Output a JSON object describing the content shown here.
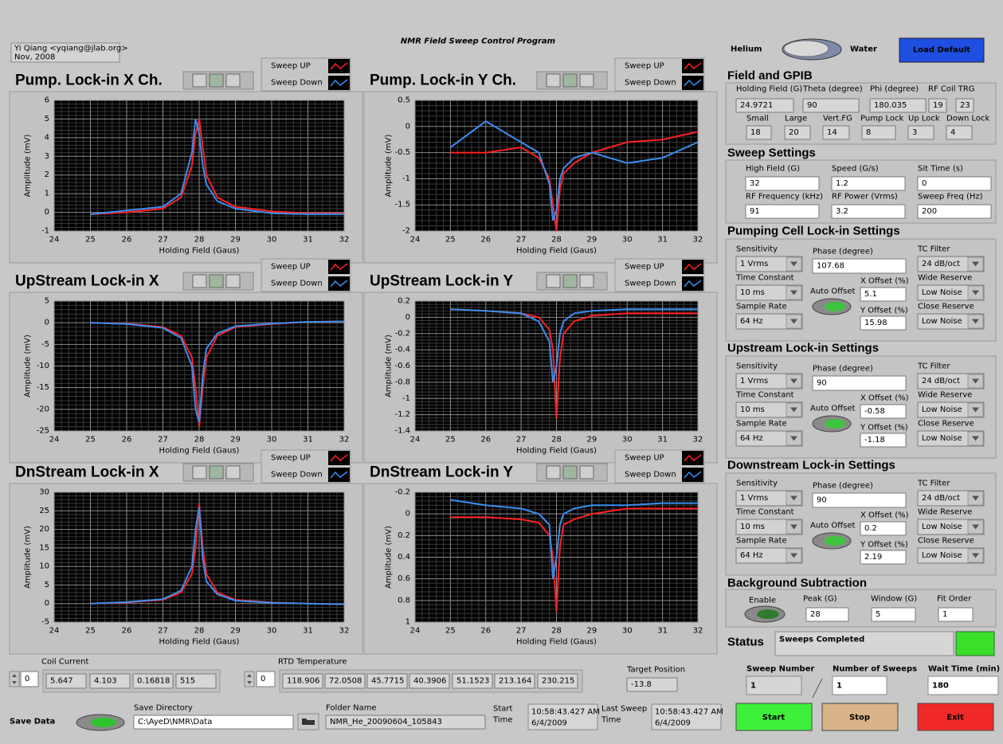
{
  "header": {
    "author": "Yi Qiang <yqiang@jlab.org>",
    "date": "Nov, 2008",
    "title": "NMR Field Sweep Control Program",
    "helium": "Helium",
    "water": "Water",
    "load_default": "Load Default"
  },
  "plots": [
    {
      "title": "Pump. Lock-in X Ch.",
      "xlabel": "Holding Field (Gaus)",
      "ylabel": "Amplitude (mV)",
      "xlim": [
        24,
        32
      ],
      "xticks": [
        24,
        25,
        26,
        27,
        28,
        29,
        30,
        31,
        32
      ],
      "ylim": [
        -1,
        6
      ],
      "yticks": [
        -1,
        0,
        1,
        2,
        3,
        4,
        5,
        6
      ],
      "x": [
        25,
        26,
        27,
        27.5,
        27.8,
        27.9,
        28,
        28.1,
        28.2,
        28.5,
        29,
        30,
        31,
        32
      ],
      "series": [
        {
          "name": "Sweep UP",
          "color": "#ff2020",
          "values": [
            -0.1,
            0,
            0.2,
            0.8,
            2.5,
            4.2,
            5.0,
            3.5,
            2,
            0.8,
            0.3,
            0.05,
            -0.05,
            -0.05
          ]
        },
        {
          "name": "Sweep Down",
          "color": "#3a8ef0",
          "values": [
            -0.1,
            0.1,
            0.3,
            1.0,
            3.2,
            5.0,
            4.2,
            2.5,
            1.5,
            0.6,
            0.2,
            -0.05,
            -0.1,
            -0.1
          ]
        }
      ]
    },
    {
      "title": "Pump. Lock-in Y Ch.",
      "xlabel": "Holding Field (Gaus)",
      "ylabel": "Amplitude (mV)",
      "xlim": [
        24,
        32
      ],
      "xticks": [
        24,
        25,
        26,
        27,
        28,
        29,
        30,
        31,
        32
      ],
      "ylim": [
        -2,
        0.5
      ],
      "yticks": [
        -2,
        -1.5,
        -1,
        -0.5,
        0,
        0.5
      ],
      "x": [
        25,
        26,
        27,
        27.5,
        27.8,
        27.9,
        28,
        28.1,
        28.2,
        28.5,
        29,
        30,
        31,
        32
      ],
      "series": [
        {
          "name": "Sweep UP",
          "color": "#ff2020",
          "values": [
            -0.5,
            -0.5,
            -0.4,
            -0.6,
            -1.0,
            -1.5,
            -2.0,
            -1.2,
            -0.9,
            -0.7,
            -0.5,
            -0.3,
            -0.25,
            -0.1
          ]
        },
        {
          "name": "Sweep Down",
          "color": "#3a8ef0",
          "values": [
            -0.4,
            0.1,
            -0.3,
            -0.5,
            -1.1,
            -1.8,
            -1.6,
            -1.0,
            -0.8,
            -0.6,
            -0.5,
            -0.7,
            -0.6,
            -0.3
          ]
        }
      ]
    },
    {
      "title": "UpStream Lock-in X",
      "xlabel": "Holding Field (Gaus)",
      "ylabel": "Amplitude (mV)",
      "xlim": [
        24,
        32
      ],
      "xticks": [
        24,
        25,
        26,
        27,
        28,
        29,
        30,
        31,
        32
      ],
      "ylim": [
        -25,
        5
      ],
      "yticks": [
        -25,
        -20,
        -15,
        -10,
        -5,
        0,
        5
      ],
      "x": [
        25,
        26,
        27,
        27.5,
        27.8,
        27.9,
        28,
        28.1,
        28.2,
        28.5,
        29,
        30,
        31,
        32
      ],
      "series": [
        {
          "name": "Sweep UP",
          "color": "#ff2020",
          "values": [
            0,
            -0.2,
            -1,
            -3,
            -8,
            -15,
            -24,
            -15,
            -8,
            -3,
            -1,
            -0.3,
            0.2,
            0.3
          ]
        },
        {
          "name": "Sweep Down",
          "color": "#3a8ef0",
          "values": [
            0,
            -0.3,
            -1.2,
            -3.5,
            -10,
            -20,
            -23,
            -12,
            -6,
            -2.5,
            -0.8,
            -0.2,
            0.2,
            0.3
          ]
        }
      ]
    },
    {
      "title": "UpStream Lock-in Y",
      "xlabel": "Holding Field (Gaus)",
      "ylabel": "Amplitude (mV)",
      "xlim": [
        24,
        32
      ],
      "xticks": [
        24,
        25,
        26,
        27,
        28,
        29,
        30,
        31,
        32
      ],
      "ylim": [
        -1.4,
        0.2
      ],
      "yticks": [
        -1.4,
        -1.2,
        -1,
        -0.8,
        -0.6,
        -0.4,
        -0.2,
        0,
        0.2
      ],
      "x": [
        25,
        26,
        27,
        27.5,
        27.8,
        27.9,
        28,
        28.1,
        28.2,
        28.5,
        29,
        30,
        31,
        32
      ],
      "series": [
        {
          "name": "Sweep UP",
          "color": "#ff2020",
          "values": [
            0.1,
            0.08,
            0.05,
            0,
            -0.15,
            -0.4,
            -1.25,
            -0.5,
            -0.2,
            -0.05,
            0.02,
            0.05,
            0.05,
            0.05
          ]
        },
        {
          "name": "Sweep Down",
          "color": "#3a8ef0",
          "values": [
            0.1,
            0.08,
            0.05,
            -0.05,
            -0.3,
            -0.8,
            -0.6,
            -0.2,
            -0.05,
            0.05,
            0.08,
            0.1,
            0.1,
            0.1
          ]
        }
      ]
    },
    {
      "title": "DnStream Lock-in X",
      "xlabel": "Holding Field (Gaus)",
      "ylabel": "Amplitude (mV)",
      "xlim": [
        24,
        32
      ],
      "xticks": [
        24,
        25,
        26,
        27,
        28,
        29,
        30,
        31,
        32
      ],
      "ylim": [
        -5,
        30
      ],
      "yticks": [
        -5,
        0,
        5,
        10,
        15,
        20,
        25,
        30
      ],
      "x": [
        25,
        26,
        27,
        27.5,
        27.8,
        27.9,
        28,
        28.1,
        28.2,
        28.5,
        29,
        30,
        31,
        32
      ],
      "series": [
        {
          "name": "Sweep UP",
          "color": "#ff2020",
          "values": [
            0,
            0.3,
            1,
            3,
            8,
            15,
            27,
            15,
            8,
            3,
            1,
            0.3,
            0,
            -0.2
          ]
        },
        {
          "name": "Sweep Down",
          "color": "#3a8ef0",
          "values": [
            0,
            0.4,
            1.2,
            3.5,
            10,
            20,
            26,
            12,
            6,
            2.5,
            0.8,
            0.2,
            0,
            -0.2
          ]
        }
      ]
    },
    {
      "title": "DnStream Lock-in Y",
      "xlabel": "Holding Field (Gaus)",
      "ylabel": "Amplitude (mV)",
      "xlim": [
        24,
        32
      ],
      "xticks": [
        24,
        25,
        26,
        27,
        28,
        29,
        30,
        31,
        32
      ],
      "ylim": [
        1,
        -0.2
      ],
      "yticks": [
        -0.2,
        0,
        0.2,
        0.4,
        0.6,
        0.8,
        1
      ],
      "x": [
        25,
        26,
        27,
        27.5,
        27.8,
        27.9,
        28,
        28.1,
        28.2,
        28.5,
        29,
        30,
        31,
        32
      ],
      "series": [
        {
          "name": "Sweep UP",
          "color": "#ff2020",
          "values": [
            0.03,
            0.03,
            0.05,
            0.08,
            0.2,
            0.4,
            0.9,
            0.3,
            0.1,
            0.05,
            0,
            -0.05,
            -0.05,
            -0.05
          ]
        },
        {
          "name": "Sweep Down",
          "color": "#3a8ef0",
          "values": [
            -0.13,
            -0.08,
            -0.05,
            0,
            0.1,
            0.6,
            0.4,
            0.1,
            0,
            -0.05,
            -0.08,
            -0.08,
            -0.1,
            -0.1
          ]
        }
      ]
    }
  ],
  "field_gpib": {
    "title": "Field and GPIB",
    "fields": [
      {
        "label": "Holding Field (G)",
        "value": "24.9721"
      },
      {
        "label": "Theta (degree)",
        "value": "90"
      },
      {
        "label": "Phi (degree)",
        "value": "180.035"
      },
      {
        "label": "RF Coil TRG",
        "values": [
          "19",
          "23"
        ]
      },
      {
        "label": "Small",
        "value": "18"
      },
      {
        "label": "Large",
        "value": "20"
      },
      {
        "label": "Vert.FG",
        "value": "14"
      },
      {
        "label": "Pump Lock",
        "value": "8"
      },
      {
        "label": "Up Lock",
        "value": "3"
      },
      {
        "label": "Down Lock",
        "value": "4"
      }
    ]
  },
  "sweep_settings": {
    "title": "Sweep Settings",
    "fields": [
      {
        "label": "High Field (G)",
        "value": "32"
      },
      {
        "label": "Speed (G/s)",
        "value": "1.2"
      },
      {
        "label": "Sit Time (s)",
        "value": "0"
      },
      {
        "label": "RF Frequency (kHz)",
        "value": "91"
      },
      {
        "label": "RF Power (Vrms)",
        "value": "3.2"
      },
      {
        "label": "Sweep Freq (Hz)",
        "value": "200"
      }
    ]
  },
  "lockins": [
    {
      "title": "Pumping Cell Lock-in Settings",
      "sensitivity": {
        "label": "Sensitivity",
        "value": "1 Vrms"
      },
      "phase": {
        "label": "Phase (degree)",
        "value": "107.68"
      },
      "tc_filter": {
        "label": "TC Filter",
        "value": "24 dB/oct"
      },
      "time_constant": {
        "label": "Time Constant",
        "value": "10 ms"
      },
      "auto_offset": {
        "label": "Auto Offset"
      },
      "x_offset": {
        "label": "X Offset (%)",
        "value": "5.1"
      },
      "wide_reserve": {
        "label": "Wide Reserve",
        "value": "Low Noise"
      },
      "sample_rate": {
        "label": "Sample Rate",
        "value": "64 Hz"
      },
      "y_offset": {
        "label": "Y Offset (%)",
        "value": "15.98"
      },
      "close_reserve": {
        "label": "Close Reserve",
        "value": "Low Noise"
      }
    },
    {
      "title": "Upstream Lock-in Settings",
      "sensitivity": {
        "label": "Sensitivity",
        "value": "1 Vrms"
      },
      "phase": {
        "label": "Phase (degree)",
        "value": "90"
      },
      "tc_filter": {
        "label": "TC Filter",
        "value": "24 dB/oct"
      },
      "time_constant": {
        "label": "Time Constant",
        "value": "10 ms"
      },
      "auto_offset": {
        "label": "Auto Offset"
      },
      "x_offset": {
        "label": "X Offset (%)",
        "value": "-0.58"
      },
      "wide_reserve": {
        "label": "Wide Reserve",
        "value": "Low Noise"
      },
      "sample_rate": {
        "label": "Sample Rate",
        "value": "64 Hz"
      },
      "y_offset": {
        "label": "Y Offset (%)",
        "value": "-1.18"
      },
      "close_reserve": {
        "label": "Close Reserve",
        "value": "Low Noise"
      }
    },
    {
      "title": "Downstream Lock-in Settings",
      "sensitivity": {
        "label": "Sensitivity",
        "value": "1 Vrms"
      },
      "phase": {
        "label": "Phase (degree)",
        "value": "90"
      },
      "tc_filter": {
        "label": "TC Filter",
        "value": "24 dB/oct"
      },
      "time_constant": {
        "label": "Time Constant",
        "value": "10 ms"
      },
      "auto_offset": {
        "label": "Auto Offset"
      },
      "x_offset": {
        "label": "X Offset (%)",
        "value": "0.2"
      },
      "wide_reserve": {
        "label": "Wide Reserve",
        "value": "Low Noise"
      },
      "sample_rate": {
        "label": "Sample Rate",
        "value": "64 Hz"
      },
      "y_offset": {
        "label": "Y Offset (%)",
        "value": "2.19"
      },
      "close_reserve": {
        "label": "Close Reserve",
        "value": "Low Noise"
      }
    }
  ],
  "background": {
    "title": "Background Subtraction",
    "enable": "Enable",
    "peak_label": "Peak (G)",
    "peak": "28",
    "window_label": "Window (G)",
    "window": "5",
    "fit_label": "Fit Order",
    "fit": "1"
  },
  "status": {
    "label": "Status",
    "text": "Sweeps Completed"
  },
  "sweep": {
    "number_label": "Sweep Number",
    "number": "1",
    "count_label": "Number of Sweeps",
    "count": "1",
    "wait_label": "Wait Time (min)",
    "wait": "180"
  },
  "buttons": {
    "start": "Start",
    "stop": "Stop",
    "exit": "Exit"
  },
  "coil_current": {
    "label": "Coil Current",
    "index": "0",
    "values": [
      "5.647",
      "4.103",
      "0.16818",
      "515"
    ]
  },
  "rtd": {
    "label": "RTD Temperature",
    "index": "0",
    "values": [
      "118.906",
      "72.0508",
      "45.7715",
      "40.3906",
      "51.1523",
      "213.164",
      "230.215"
    ]
  },
  "target": {
    "label": "Target Position",
    "value": "-13.8"
  },
  "save": {
    "label": "Save Data",
    "directory_label": "Save Directory",
    "directory": "C:\\AyeD\\NMR\\Data",
    "folder_label": "Folder Name",
    "folder": "NMR_He_20090604_105843",
    "start_label": [
      "Start",
      "Time"
    ],
    "start_time": "10:58:43.427 AM",
    "start_date": "6/4/2009",
    "last_label": [
      "Last Sweep",
      "Time"
    ],
    "last_time": "10:58:43.427 AM",
    "last_date": "6/4/2009"
  }
}
